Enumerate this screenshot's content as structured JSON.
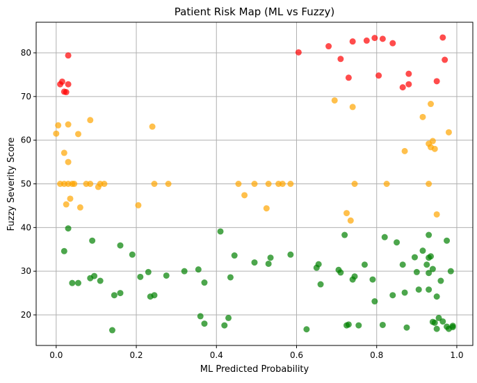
{
  "chart_data": {
    "type": "scatter",
    "title": "Patient Risk Map (ML vs Fuzzy)",
    "xlabel": "ML Predicted Probability",
    "ylabel": "Fuzzy Severity Score",
    "xlim": [
      -0.05,
      1.04
    ],
    "ylim": [
      13,
      87
    ],
    "grid": true,
    "xticks": [
      0.0,
      0.2,
      0.4,
      0.6,
      0.8,
      1.0
    ],
    "xtick_labels": [
      "0.0",
      "0.2",
      "0.4",
      "0.6",
      "0.8",
      "1.0"
    ],
    "yticks": [
      20,
      30,
      40,
      50,
      60,
      70,
      80
    ],
    "ytick_labels": [
      "20",
      "30",
      "40",
      "50",
      "60",
      "70",
      "80"
    ],
    "marker_alpha": 0.7,
    "series": [
      {
        "color": "#ff0000",
        "points": [
          [
            0.01,
            72.8
          ],
          [
            0.015,
            73.4
          ],
          [
            0.02,
            71.1
          ],
          [
            0.025,
            71.0
          ],
          [
            0.03,
            79.4
          ],
          [
            0.03,
            72.8
          ],
          [
            0.605,
            80.1
          ],
          [
            0.68,
            81.5
          ],
          [
            0.71,
            78.6
          ],
          [
            0.73,
            74.3
          ],
          [
            0.74,
            82.6
          ],
          [
            0.775,
            82.8
          ],
          [
            0.795,
            83.4
          ],
          [
            0.805,
            74.8
          ],
          [
            0.815,
            83.2
          ],
          [
            0.84,
            82.2
          ],
          [
            0.865,
            72.1
          ],
          [
            0.88,
            75.2
          ],
          [
            0.88,
            72.8
          ],
          [
            0.95,
            73.5
          ],
          [
            0.965,
            83.5
          ],
          [
            0.97,
            78.4
          ]
        ]
      },
      {
        "color": "#ffa500",
        "points": [
          [
            0.0,
            61.5
          ],
          [
            0.005,
            63.4
          ],
          [
            0.01,
            50.0
          ],
          [
            0.02,
            57.1
          ],
          [
            0.02,
            50.0
          ],
          [
            0.025,
            45.3
          ],
          [
            0.03,
            63.6
          ],
          [
            0.03,
            55.0
          ],
          [
            0.03,
            50.0
          ],
          [
            0.035,
            46.6
          ],
          [
            0.04,
            50.0
          ],
          [
            0.045,
            50.0
          ],
          [
            0.055,
            61.4
          ],
          [
            0.06,
            44.6
          ],
          [
            0.075,
            50.0
          ],
          [
            0.085,
            64.6
          ],
          [
            0.085,
            50.0
          ],
          [
            0.105,
            49.3
          ],
          [
            0.11,
            50.0
          ],
          [
            0.12,
            50.0
          ],
          [
            0.205,
            45.1
          ],
          [
            0.24,
            63.1
          ],
          [
            0.245,
            50.0
          ],
          [
            0.28,
            50.0
          ],
          [
            0.455,
            50.0
          ],
          [
            0.47,
            47.4
          ],
          [
            0.495,
            50.0
          ],
          [
            0.525,
            44.4
          ],
          [
            0.53,
            50.0
          ],
          [
            0.555,
            50.0
          ],
          [
            0.565,
            50.0
          ],
          [
            0.585,
            50.0
          ],
          [
            0.695,
            69.1
          ],
          [
            0.725,
            43.3
          ],
          [
            0.735,
            41.6
          ],
          [
            0.74,
            67.6
          ],
          [
            0.745,
            50.0
          ],
          [
            0.825,
            50.0
          ],
          [
            0.87,
            57.5
          ],
          [
            0.915,
            65.3
          ],
          [
            0.93,
            59.2
          ],
          [
            0.93,
            50.0
          ],
          [
            0.935,
            68.3
          ],
          [
            0.935,
            58.4
          ],
          [
            0.94,
            59.8
          ],
          [
            0.945,
            58.0
          ],
          [
            0.95,
            43.0
          ],
          [
            0.98,
            61.8
          ]
        ]
      },
      {
        "color": "#008000",
        "points": [
          [
            0.02,
            34.6
          ],
          [
            0.03,
            39.8
          ],
          [
            0.04,
            27.3
          ],
          [
            0.055,
            27.3
          ],
          [
            0.085,
            28.4
          ],
          [
            0.09,
            37.0
          ],
          [
            0.095,
            28.9
          ],
          [
            0.11,
            27.8
          ],
          [
            0.14,
            16.5
          ],
          [
            0.145,
            24.5
          ],
          [
            0.16,
            35.9
          ],
          [
            0.16,
            25.0
          ],
          [
            0.19,
            33.8
          ],
          [
            0.21,
            28.7
          ],
          [
            0.23,
            29.8
          ],
          [
            0.235,
            24.2
          ],
          [
            0.245,
            24.5
          ],
          [
            0.275,
            29.0
          ],
          [
            0.32,
            30.0
          ],
          [
            0.355,
            30.4
          ],
          [
            0.36,
            19.7
          ],
          [
            0.37,
            27.4
          ],
          [
            0.37,
            18.0
          ],
          [
            0.41,
            39.1
          ],
          [
            0.42,
            17.6
          ],
          [
            0.43,
            19.3
          ],
          [
            0.435,
            28.6
          ],
          [
            0.445,
            33.6
          ],
          [
            0.495,
            32.0
          ],
          [
            0.53,
            31.7
          ],
          [
            0.535,
            33.1
          ],
          [
            0.585,
            33.8
          ],
          [
            0.625,
            16.7
          ],
          [
            0.65,
            30.8
          ],
          [
            0.655,
            31.6
          ],
          [
            0.66,
            27.0
          ],
          [
            0.705,
            30.3
          ],
          [
            0.71,
            29.7
          ],
          [
            0.72,
            38.3
          ],
          [
            0.725,
            17.6
          ],
          [
            0.73,
            17.8
          ],
          [
            0.74,
            28.1
          ],
          [
            0.745,
            28.8
          ],
          [
            0.755,
            17.6
          ],
          [
            0.77,
            31.5
          ],
          [
            0.79,
            28.1
          ],
          [
            0.795,
            23.1
          ],
          [
            0.815,
            17.7
          ],
          [
            0.82,
            37.8
          ],
          [
            0.84,
            24.5
          ],
          [
            0.85,
            36.6
          ],
          [
            0.865,
            31.5
          ],
          [
            0.87,
            25.1
          ],
          [
            0.875,
            17.1
          ],
          [
            0.895,
            33.2
          ],
          [
            0.9,
            29.8
          ],
          [
            0.905,
            25.8
          ],
          [
            0.915,
            34.7
          ],
          [
            0.925,
            31.5
          ],
          [
            0.93,
            38.3
          ],
          [
            0.93,
            33.1
          ],
          [
            0.93,
            29.6
          ],
          [
            0.93,
            25.8
          ],
          [
            0.935,
            33.4
          ],
          [
            0.94,
            30.5
          ],
          [
            0.94,
            18.4
          ],
          [
            0.945,
            18.2
          ],
          [
            0.95,
            24.2
          ],
          [
            0.95,
            16.8
          ],
          [
            0.955,
            19.3
          ],
          [
            0.96,
            27.8
          ],
          [
            0.965,
            18.5
          ],
          [
            0.975,
            17.3
          ],
          [
            0.975,
            37.0
          ],
          [
            0.98,
            16.8
          ],
          [
            0.985,
            30.0
          ],
          [
            0.99,
            17.5
          ],
          [
            0.99,
            17.2
          ]
        ]
      }
    ]
  }
}
